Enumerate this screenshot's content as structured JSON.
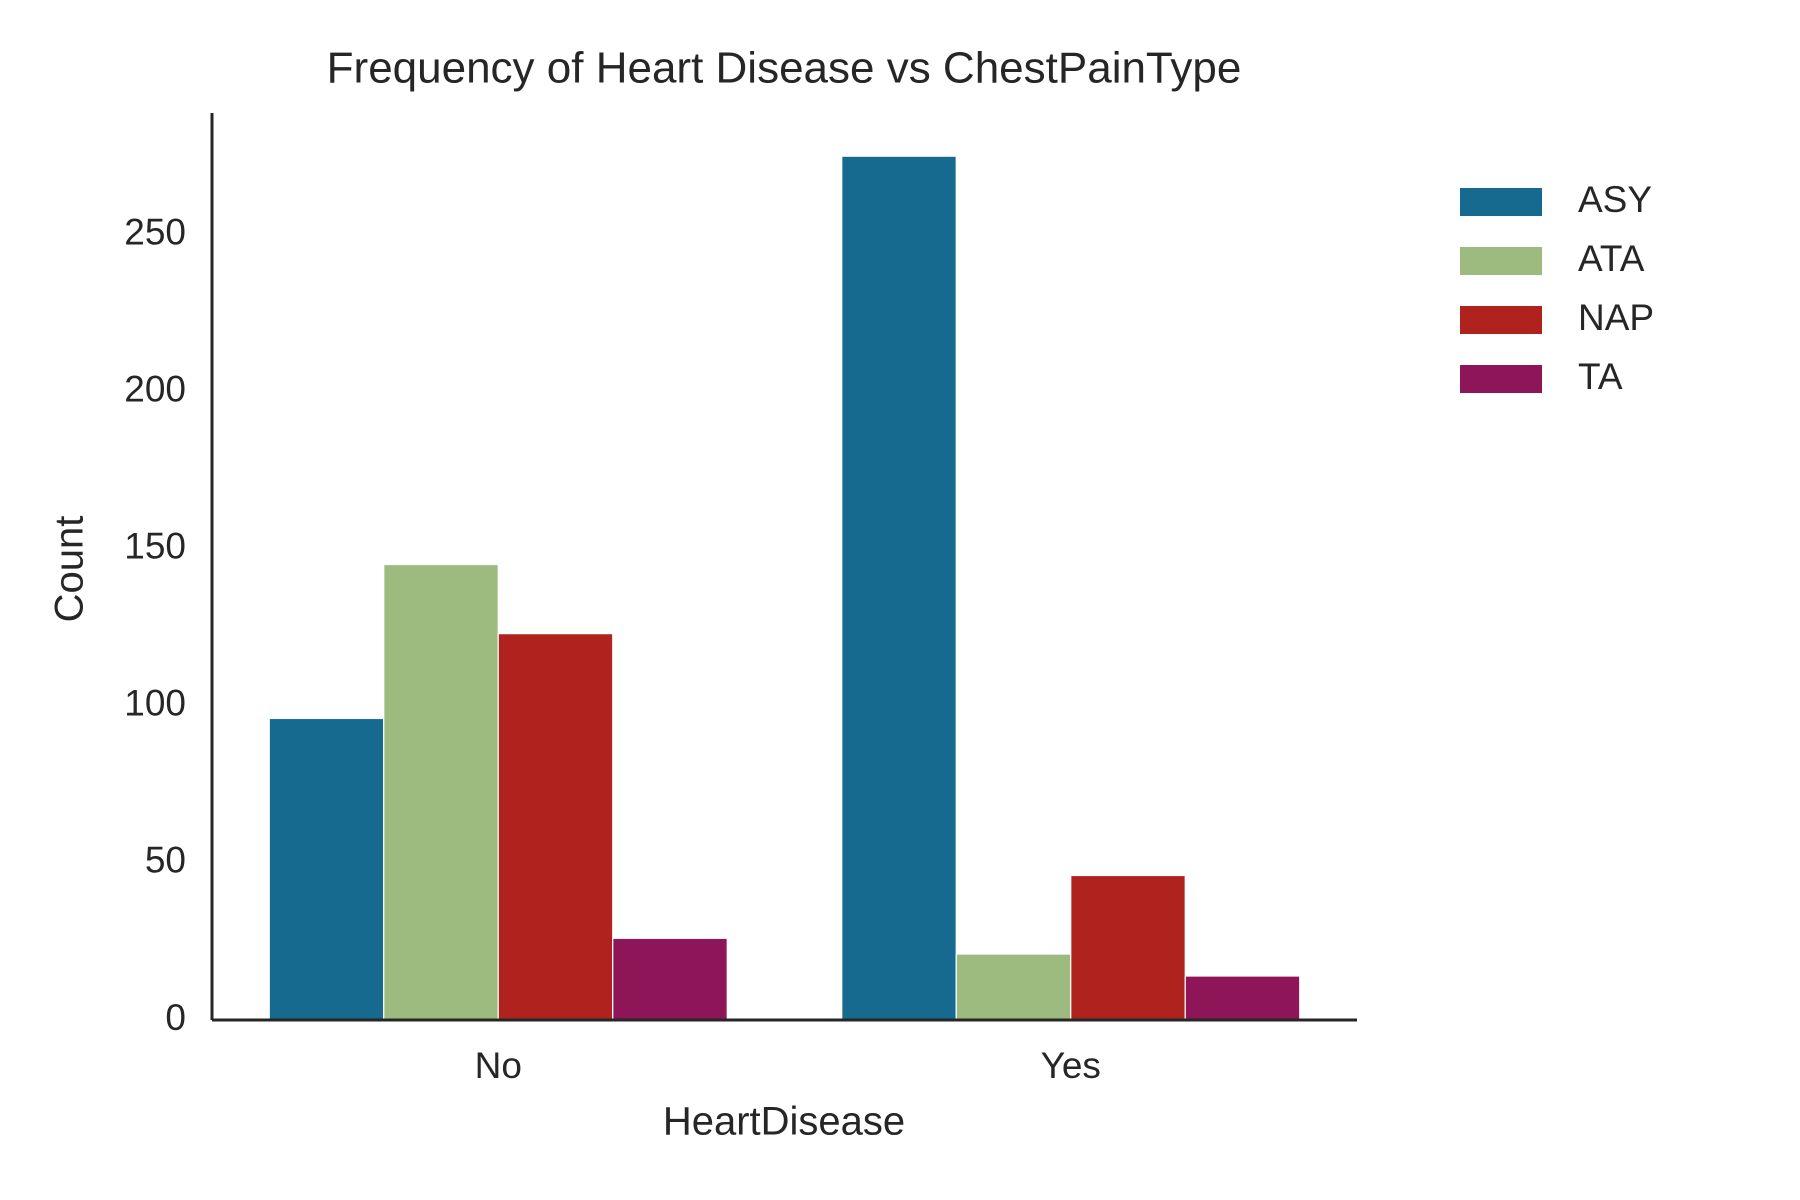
{
  "chart_data": {
    "type": "bar",
    "title": "Frequency of Heart Disease vs ChestPainType",
    "x_label": "HeartDisease",
    "y_label": "Count",
    "categories": [
      "No",
      "Yes"
    ],
    "series": [
      {
        "name": "ASY",
        "color": "#176a8f",
        "values": [
          96,
          275
        ]
      },
      {
        "name": "ATA",
        "color": "#9dba7f",
        "values": [
          145,
          21
        ]
      },
      {
        "name": "NAP",
        "color": "#b0221e",
        "values": [
          123,
          46
        ]
      },
      {
        "name": "TA",
        "color": "#8e1558",
        "values": [
          26,
          14
        ]
      }
    ],
    "ylim": [
      0,
      288.75
    ],
    "yticks": [
      0,
      50,
      100,
      150,
      200,
      250
    ],
    "grid": false,
    "legend": "upper right outside"
  }
}
